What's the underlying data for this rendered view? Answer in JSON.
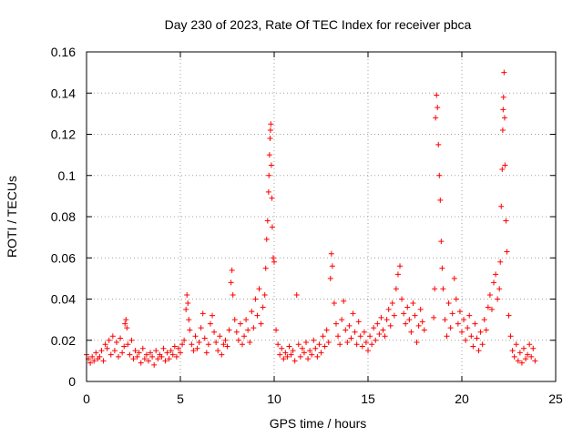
{
  "chart_data": {
    "type": "scatter",
    "title": "Day 230 of 2023, Rate Of TEC Index for receiver pbca",
    "xlabel": "GPS time / hours",
    "ylabel": "ROTI / TECUs",
    "xlim": [
      0,
      25
    ],
    "ylim": [
      0,
      0.16
    ],
    "x_ticks": [
      "0",
      "5",
      "10",
      "15",
      "20",
      "25"
    ],
    "y_ticks": [
      "0",
      "0.02",
      "0.04",
      "0.06",
      "0.08",
      "0.1",
      "0.12",
      "0.14",
      "0.16"
    ],
    "grid": true,
    "marker": "+",
    "color": "#ff0000",
    "points": [
      [
        0.0,
        0.013
      ],
      [
        0.1,
        0.011
      ],
      [
        0.2,
        0.009
      ],
      [
        0.3,
        0.012
      ],
      [
        0.4,
        0.01
      ],
      [
        0.5,
        0.014
      ],
      [
        0.6,
        0.011
      ],
      [
        0.7,
        0.012
      ],
      [
        0.8,
        0.015
      ],
      [
        0.9,
        0.01
      ],
      [
        1.0,
        0.018
      ],
      [
        1.1,
        0.016
      ],
      [
        1.2,
        0.02
      ],
      [
        1.3,
        0.013
      ],
      [
        1.4,
        0.022
      ],
      [
        1.5,
        0.015
      ],
      [
        1.6,
        0.019
      ],
      [
        1.7,
        0.012
      ],
      [
        1.8,
        0.021
      ],
      [
        1.9,
        0.014
      ],
      [
        2.0,
        0.017
      ],
      [
        2.05,
        0.028
      ],
      [
        2.1,
        0.03
      ],
      [
        2.15,
        0.026
      ],
      [
        2.2,
        0.018
      ],
      [
        2.3,
        0.013
      ],
      [
        2.4,
        0.02
      ],
      [
        2.5,
        0.011
      ],
      [
        2.6,
        0.015
      ],
      [
        2.7,
        0.012
      ],
      [
        2.8,
        0.014
      ],
      [
        2.9,
        0.009
      ],
      [
        3.0,
        0.016
      ],
      [
        3.1,
        0.011
      ],
      [
        3.2,
        0.013
      ],
      [
        3.3,
        0.01
      ],
      [
        3.4,
        0.014
      ],
      [
        3.5,
        0.012
      ],
      [
        3.6,
        0.008
      ],
      [
        3.7,
        0.015
      ],
      [
        3.8,
        0.011
      ],
      [
        3.9,
        0.013
      ],
      [
        4.0,
        0.012
      ],
      [
        4.1,
        0.016
      ],
      [
        4.2,
        0.01
      ],
      [
        4.3,
        0.014
      ],
      [
        4.4,
        0.011
      ],
      [
        4.5,
        0.015
      ],
      [
        4.6,
        0.013
      ],
      [
        4.7,
        0.017
      ],
      [
        4.8,
        0.012
      ],
      [
        4.9,
        0.016
      ],
      [
        5.0,
        0.014
      ],
      [
        5.1,
        0.018
      ],
      [
        5.2,
        0.02
      ],
      [
        5.3,
        0.035
      ],
      [
        5.35,
        0.042
      ],
      [
        5.4,
        0.038
      ],
      [
        5.45,
        0.03
      ],
      [
        5.5,
        0.025
      ],
      [
        5.6,
        0.018
      ],
      [
        5.7,
        0.015
      ],
      [
        5.8,
        0.022
      ],
      [
        5.9,
        0.016
      ],
      [
        6.0,
        0.019
      ],
      [
        6.1,
        0.026
      ],
      [
        6.2,
        0.033
      ],
      [
        6.3,
        0.021
      ],
      [
        6.4,
        0.014
      ],
      [
        6.5,
        0.018
      ],
      [
        6.6,
        0.028
      ],
      [
        6.7,
        0.032
      ],
      [
        6.8,
        0.024
      ],
      [
        6.9,
        0.019
      ],
      [
        7.0,
        0.015
      ],
      [
        7.1,
        0.022
      ],
      [
        7.2,
        0.013
      ],
      [
        7.3,
        0.018
      ],
      [
        7.4,
        0.02
      ],
      [
        7.5,
        0.017
      ],
      [
        7.6,
        0.025
      ],
      [
        7.7,
        0.048
      ],
      [
        7.75,
        0.054
      ],
      [
        7.8,
        0.042
      ],
      [
        7.9,
        0.03
      ],
      [
        8.0,
        0.024
      ],
      [
        8.1,
        0.02
      ],
      [
        8.2,
        0.028
      ],
      [
        8.3,
        0.018
      ],
      [
        8.4,
        0.022
      ],
      [
        8.5,
        0.03
      ],
      [
        8.6,
        0.025
      ],
      [
        8.7,
        0.019
      ],
      [
        8.8,
        0.034
      ],
      [
        8.9,
        0.026
      ],
      [
        9.0,
        0.04
      ],
      [
        9.1,
        0.032
      ],
      [
        9.2,
        0.045
      ],
      [
        9.3,
        0.028
      ],
      [
        9.4,
        0.036
      ],
      [
        9.5,
        0.042
      ],
      [
        9.55,
        0.055
      ],
      [
        9.6,
        0.069
      ],
      [
        9.65,
        0.078
      ],
      [
        9.7,
        0.092
      ],
      [
        9.72,
        0.1
      ],
      [
        9.75,
        0.11
      ],
      [
        9.78,
        0.118
      ],
      [
        9.8,
        0.122
      ],
      [
        9.82,
        0.125
      ],
      [
        9.85,
        0.105
      ],
      [
        9.88,
        0.089
      ],
      [
        9.9,
        0.075
      ],
      [
        9.95,
        0.06
      ],
      [
        10.0,
        0.058
      ],
      [
        10.1,
        0.025
      ],
      [
        10.2,
        0.018
      ],
      [
        10.3,
        0.013
      ],
      [
        10.4,
        0.016
      ],
      [
        10.5,
        0.011
      ],
      [
        10.6,
        0.014
      ],
      [
        10.7,
        0.012
      ],
      [
        10.8,
        0.017
      ],
      [
        10.9,
        0.013
      ],
      [
        11.0,
        0.015
      ],
      [
        11.1,
        0.01
      ],
      [
        11.2,
        0.042
      ],
      [
        11.3,
        0.018
      ],
      [
        11.4,
        0.012
      ],
      [
        11.5,
        0.016
      ],
      [
        11.6,
        0.014
      ],
      [
        11.7,
        0.019
      ],
      [
        11.8,
        0.011
      ],
      [
        11.9,
        0.015
      ],
      [
        12.0,
        0.013
      ],
      [
        12.1,
        0.02
      ],
      [
        12.2,
        0.016
      ],
      [
        12.3,
        0.012
      ],
      [
        12.4,
        0.018
      ],
      [
        12.5,
        0.014
      ],
      [
        12.6,
        0.022
      ],
      [
        12.7,
        0.017
      ],
      [
        12.8,
        0.025
      ],
      [
        12.9,
        0.019
      ],
      [
        13.0,
        0.05
      ],
      [
        13.05,
        0.062
      ],
      [
        13.1,
        0.056
      ],
      [
        13.2,
        0.038
      ],
      [
        13.3,
        0.028
      ],
      [
        13.4,
        0.022
      ],
      [
        13.5,
        0.018
      ],
      [
        13.6,
        0.03
      ],
      [
        13.7,
        0.039
      ],
      [
        13.8,
        0.025
      ],
      [
        13.9,
        0.019
      ],
      [
        14.0,
        0.027
      ],
      [
        14.1,
        0.021
      ],
      [
        14.2,
        0.033
      ],
      [
        14.3,
        0.024
      ],
      [
        14.4,
        0.018
      ],
      [
        14.5,
        0.029
      ],
      [
        14.6,
        0.022
      ],
      [
        14.7,
        0.017
      ],
      [
        14.8,
        0.024
      ],
      [
        14.9,
        0.019
      ],
      [
        15.0,
        0.015
      ],
      [
        15.1,
        0.022
      ],
      [
        15.2,
        0.018
      ],
      [
        15.3,
        0.026
      ],
      [
        15.4,
        0.02
      ],
      [
        15.5,
        0.028
      ],
      [
        15.6,
        0.023
      ],
      [
        15.7,
        0.031
      ],
      [
        15.8,
        0.025
      ],
      [
        15.9,
        0.022
      ],
      [
        16.0,
        0.03
      ],
      [
        16.1,
        0.035
      ],
      [
        16.2,
        0.027
      ],
      [
        16.3,
        0.038
      ],
      [
        16.4,
        0.032
      ],
      [
        16.5,
        0.045
      ],
      [
        16.6,
        0.052
      ],
      [
        16.7,
        0.056
      ],
      [
        16.8,
        0.04
      ],
      [
        16.9,
        0.033
      ],
      [
        17.0,
        0.028
      ],
      [
        17.1,
        0.036
      ],
      [
        17.2,
        0.03
      ],
      [
        17.3,
        0.024
      ],
      [
        17.4,
        0.038
      ],
      [
        17.5,
        0.032
      ],
      [
        17.6,
        0.019
      ],
      [
        17.7,
        0.027
      ],
      [
        17.8,
        0.035
      ],
      [
        17.9,
        0.029
      ],
      [
        18.0,
        0.025
      ],
      [
        18.5,
        0.031
      ],
      [
        18.55,
        0.045
      ],
      [
        18.6,
        0.128
      ],
      [
        18.65,
        0.139
      ],
      [
        18.7,
        0.133
      ],
      [
        18.75,
        0.115
      ],
      [
        18.8,
        0.1
      ],
      [
        18.85,
        0.088
      ],
      [
        18.9,
        0.068
      ],
      [
        18.95,
        0.055
      ],
      [
        19.0,
        0.045
      ],
      [
        19.1,
        0.03
      ],
      [
        19.2,
        0.022
      ],
      [
        19.3,
        0.038
      ],
      [
        19.4,
        0.026
      ],
      [
        19.5,
        0.033
      ],
      [
        19.6,
        0.05
      ],
      [
        19.7,
        0.04
      ],
      [
        19.8,
        0.028
      ],
      [
        19.9,
        0.034
      ],
      [
        20.0,
        0.024
      ],
      [
        20.1,
        0.03
      ],
      [
        20.2,
        0.02
      ],
      [
        20.3,
        0.026
      ],
      [
        20.4,
        0.032
      ],
      [
        20.5,
        0.022
      ],
      [
        20.6,
        0.017
      ],
      [
        20.7,
        0.028
      ],
      [
        20.8,
        0.021
      ],
      [
        20.9,
        0.015
      ],
      [
        21.0,
        0.024
      ],
      [
        21.1,
        0.018
      ],
      [
        21.2,
        0.03
      ],
      [
        21.3,
        0.025
      ],
      [
        21.4,
        0.036
      ],
      [
        21.5,
        0.042
      ],
      [
        21.6,
        0.035
      ],
      [
        21.7,
        0.048
      ],
      [
        21.8,
        0.052
      ],
      [
        21.9,
        0.04
      ],
      [
        22.0,
        0.045
      ],
      [
        22.05,
        0.058
      ],
      [
        22.1,
        0.085
      ],
      [
        22.15,
        0.103
      ],
      [
        22.18,
        0.122
      ],
      [
        22.2,
        0.132
      ],
      [
        22.22,
        0.138
      ],
      [
        22.25,
        0.15
      ],
      [
        22.28,
        0.128
      ],
      [
        22.3,
        0.105
      ],
      [
        22.35,
        0.078
      ],
      [
        22.4,
        0.063
      ],
      [
        22.5,
        0.032
      ],
      [
        22.6,
        0.022
      ],
      [
        22.7,
        0.015
      ],
      [
        22.8,
        0.012
      ],
      [
        22.9,
        0.018
      ],
      [
        23.0,
        0.01
      ],
      [
        23.1,
        0.014
      ],
      [
        23.2,
        0.009
      ],
      [
        23.3,
        0.016
      ],
      [
        23.4,
        0.011
      ],
      [
        23.5,
        0.013
      ],
      [
        23.6,
        0.018
      ],
      [
        23.7,
        0.012
      ],
      [
        23.8,
        0.016
      ],
      [
        23.9,
        0.01
      ]
    ]
  }
}
